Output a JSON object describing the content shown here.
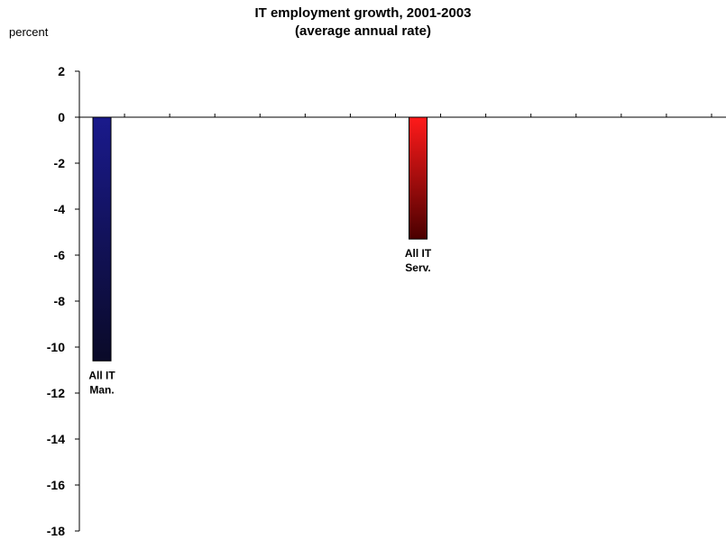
{
  "chart_data": {
    "type": "bar",
    "title_line1": "IT employment growth, 2001-2003",
    "title_line2": "(average annual rate)",
    "ylabel": "percent",
    "ylim": [
      -18,
      2
    ],
    "yticks": [
      "2",
      "0",
      "-2",
      "-4",
      "-6",
      "-8",
      "-10",
      "-12",
      "-14",
      "-16",
      "-18"
    ],
    "categories": [
      "All IT Man.",
      "All IT Serv."
    ],
    "values": [
      -10.6,
      -5.3
    ],
    "category_slots": [
      0,
      7
    ],
    "slot_count": 14,
    "bar_labels": [
      [
        "All IT",
        "Man."
      ],
      [
        "All IT",
        "Serv."
      ]
    ],
    "colors": {
      "man_top": "#1a1a8c",
      "man_bottom": "#0a0a28",
      "serv_top": "#ff1a1a",
      "serv_bottom": "#4a0000"
    }
  }
}
